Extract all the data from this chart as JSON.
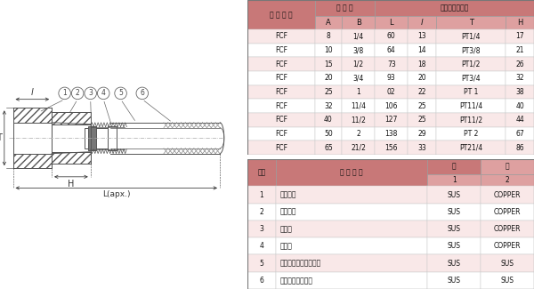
{
  "header_bg": "#c87878",
  "subheader_bg": "#dea0a0",
  "row_pink": "#f9e8e8",
  "row_white": "#ffffff",
  "border_color": "#aaaaaa",
  "table1_title": "型 式 番 号",
  "table1_grp1": "呼 び 径",
  "table1_grp2": "ユ　ニ　オ　ン",
  "table1_subcols": [
    "A",
    "B",
    "L",
    "l",
    "T",
    "H"
  ],
  "table1_data": [
    [
      "FCF",
      "8",
      "1/4",
      "60",
      "13",
      "PT1/4",
      "17"
    ],
    [
      "FCF",
      "10",
      "3/8",
      "64",
      "14",
      "PT3/8",
      "21"
    ],
    [
      "FCF",
      "15",
      "1/2",
      "73",
      "18",
      "PT1/2",
      "26"
    ],
    [
      "FCF",
      "20",
      "3/4",
      "93",
      "20",
      "PT3/4",
      "32"
    ],
    [
      "FCF",
      "25",
      "1",
      "02",
      "22",
      "PT 1",
      "38"
    ],
    [
      "FCF",
      "32",
      "11/4",
      "106",
      "25",
      "PT11/4",
      "40"
    ],
    [
      "FCF",
      "40",
      "11/2",
      "127",
      "25",
      "PT11/2",
      "44"
    ],
    [
      "FCF",
      "50",
      "2",
      "138",
      "29",
      "PT 2",
      "67"
    ],
    [
      "FCF",
      "65",
      "21/2",
      "156",
      "33",
      "PT21/4",
      "86"
    ]
  ],
  "table2_col1": "符号",
  "table2_col2": "部 品 名 称",
  "table2_col3": "材",
  "table2_col4": "質",
  "table2_sub3": "1",
  "table2_sub4": "2",
  "table2_data": [
    [
      "1",
      "ソケット",
      "SUS",
      "COPPER"
    ],
    [
      "2",
      "袋ナット",
      "SUS",
      "COPPER"
    ],
    [
      "3",
      "芯　金",
      "SUS",
      "COPPER"
    ],
    [
      "4",
      "リング",
      "SUS",
      "COPPER"
    ],
    [
      "5",
      "フレキシブルチューブ",
      "SUS",
      "SUS"
    ],
    [
      "6",
      "ワイヤーブレード",
      "SUS",
      "SUS"
    ]
  ]
}
